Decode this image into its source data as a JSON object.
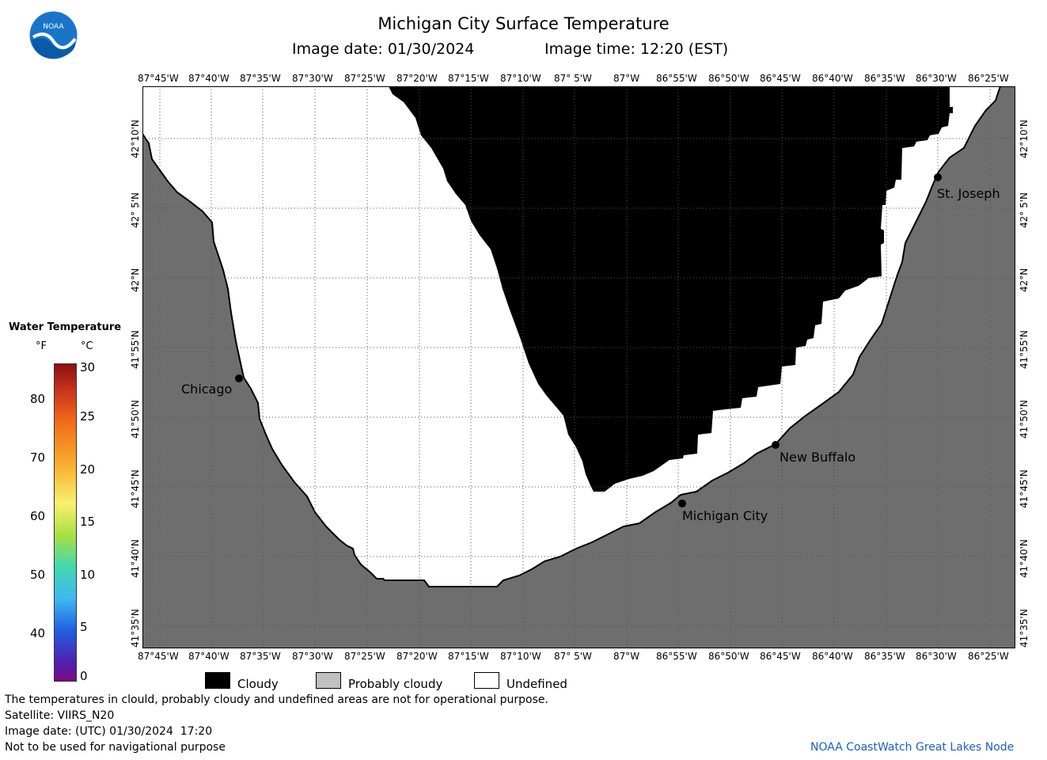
{
  "header": {
    "title": "Michigan City Surface Temperature",
    "image_date": "Image date: 01/30/2024",
    "image_time": "Image time: 12:20 (EST)",
    "logo_text": "NOAA"
  },
  "lon_labels": [
    "87°45'W",
    "87°40'W",
    "87°35'W",
    "87°30'W",
    "87°25'W",
    "87°20'W",
    "87°15'W",
    "87°10'W",
    "87° 5'W",
    "87°W",
    "86°55'W",
    "86°50'W",
    "86°45'W",
    "86°40'W",
    "86°35'W",
    "86°30'W",
    "86°25'W"
  ],
  "lat_labels": [
    "42°10'N",
    "42° 5'N",
    "42°N",
    "41°55'N",
    "41°50'N",
    "41°45'N",
    "41°40'N",
    "41°35'N"
  ],
  "cities": [
    {
      "name": "Chicago"
    },
    {
      "name": "St. Joseph"
    },
    {
      "name": "New Buffalo"
    },
    {
      "name": "Michigan City"
    }
  ],
  "temperature_legend": {
    "title": "Water Temperature",
    "unit_f": "°F",
    "unit_c": "°C",
    "f_ticks": [
      "80",
      "70",
      "60",
      "50",
      "40"
    ],
    "c_ticks": [
      "30",
      "25",
      "20",
      "15",
      "10",
      "5",
      "0"
    ]
  },
  "legend": {
    "cloudy": "Cloudy",
    "probably_cloudy": "Probably cloudy",
    "undefined": "Undefined",
    "colors": {
      "cloudy": "#000000",
      "probably_cloudy": "#c0c0c0",
      "undefined": "#ffffff",
      "land": "#6e6e6e"
    }
  },
  "footer": {
    "line1": "The temperatures in clould, probably cloudy and undefined areas are not for operational purpose.",
    "line2": "Satellite: VIIRS_N20",
    "line3": "Image date: (UTC) 01/30/2024  17:20",
    "line4": "Not to be used for navigational purpose",
    "credit": "NOAA CoastWatch Great Lakes Node"
  }
}
